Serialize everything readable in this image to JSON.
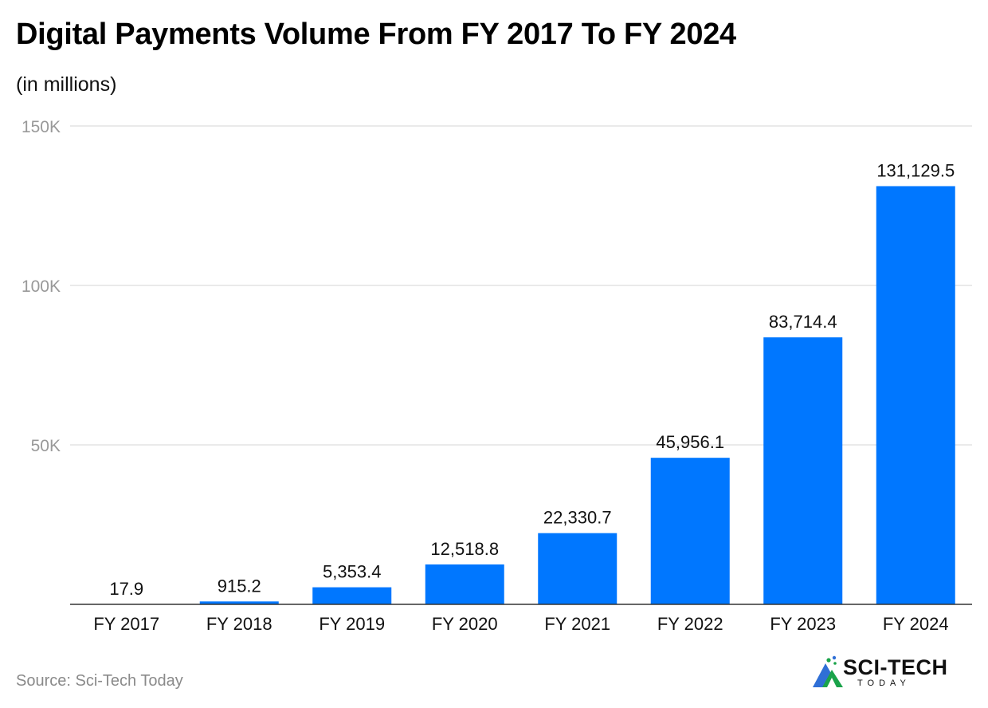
{
  "header": {
    "title": "Digital Payments Volume From FY 2017 To FY 2024",
    "subtitle": "(in millions)"
  },
  "footer": {
    "source": "Source: Sci-Tech Today",
    "logo_text": "SCI-TECH",
    "logo_subtext": "TODAY"
  },
  "colors": {
    "bar": "#0077ff",
    "grid": "#e3e3e3",
    "axis": "#333333",
    "tick_text": "#999999"
  },
  "chart_data": {
    "type": "bar",
    "title": "Digital Payments Volume From FY 2017 To FY 2024",
    "subtitle": "(in millions)",
    "categories": [
      "FY 2017",
      "FY 2018",
      "FY 2019",
      "FY 2020",
      "FY 2021",
      "FY 2022",
      "FY 2023",
      "FY 2024"
    ],
    "values": [
      17.9,
      915.2,
      5353.4,
      12518.8,
      22330.7,
      45956.1,
      83714.4,
      131129.5
    ],
    "value_labels": [
      "17.9",
      "915.2",
      "5,353.4",
      "12,518.8",
      "22,330.7",
      "45,956.1",
      "83,714.4",
      "131,129.5"
    ],
    "yticks": [
      {
        "value": 50000,
        "label": "50K"
      },
      {
        "value": 100000,
        "label": "100K"
      },
      {
        "value": 150000,
        "label": "150K"
      }
    ],
    "ylim": [
      0,
      150000
    ],
    "xlabel": "",
    "ylabel": "",
    "grid": true,
    "legend": "none"
  }
}
